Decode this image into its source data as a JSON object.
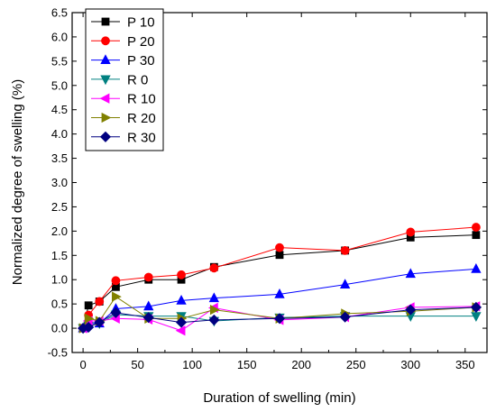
{
  "chart_data": {
    "type": "line",
    "title": "",
    "xlabel": "Duration of swelling (min)",
    "ylabel": "Normalized degree of swelling (%)",
    "xlim": [
      -10,
      370
    ],
    "ylim": [
      -0.5,
      6.5
    ],
    "xticks": [
      "0",
      "50",
      "100",
      "150",
      "200",
      "250",
      "300",
      "350"
    ],
    "yticks": [
      "-0.5",
      "0.0",
      "0.5",
      "1.0",
      "1.5",
      "2.0",
      "2.5",
      "3.0",
      "3.5",
      "4.0",
      "4.5",
      "5.0",
      "5.5",
      "6.0",
      "6.5"
    ],
    "x": [
      0,
      5,
      15,
      30,
      60,
      90,
      120,
      180,
      240,
      300,
      360
    ],
    "legend_position": "top-left",
    "grid": false,
    "series": [
      {
        "name": "P 10",
        "color": "#000000",
        "marker": "square",
        "values": [
          0.0,
          0.47,
          0.55,
          0.85,
          1.0,
          1.0,
          1.26,
          1.51,
          1.6,
          1.87,
          1.92
        ]
      },
      {
        "name": "P 20",
        "color": "#ff0000",
        "marker": "circle",
        "values": [
          0.0,
          0.27,
          0.55,
          0.98,
          1.05,
          1.1,
          1.24,
          1.66,
          1.6,
          1.98,
          2.08
        ]
      },
      {
        "name": "P 30",
        "color": "#0000ff",
        "marker": "triangle-up",
        "values": [
          0.0,
          0.1,
          0.1,
          0.4,
          0.45,
          0.57,
          0.62,
          0.7,
          0.9,
          1.12,
          1.22
        ]
      },
      {
        "name": "R 0",
        "color": "#008080",
        "marker": "triangle-down",
        "values": [
          0.0,
          0.05,
          0.1,
          0.28,
          0.25,
          0.25,
          0.15,
          0.22,
          0.25,
          0.25,
          0.25
        ]
      },
      {
        "name": "R 10",
        "color": "#ff00ff",
        "marker": "triangle-left",
        "values": [
          0.0,
          0.15,
          0.15,
          0.2,
          0.18,
          -0.05,
          0.42,
          0.17,
          0.23,
          0.43,
          0.45
        ]
      },
      {
        "name": "R 20",
        "color": "#808000",
        "marker": "triangle-right",
        "values": [
          0.0,
          0.2,
          0.15,
          0.65,
          0.2,
          0.2,
          0.38,
          0.2,
          0.3,
          0.35,
          0.43
        ]
      },
      {
        "name": "R 30",
        "color": "#000080",
        "marker": "diamond",
        "values": [
          0.0,
          0.02,
          0.12,
          0.32,
          0.22,
          0.12,
          0.17,
          0.2,
          0.23,
          0.38,
          0.43
        ]
      }
    ]
  }
}
